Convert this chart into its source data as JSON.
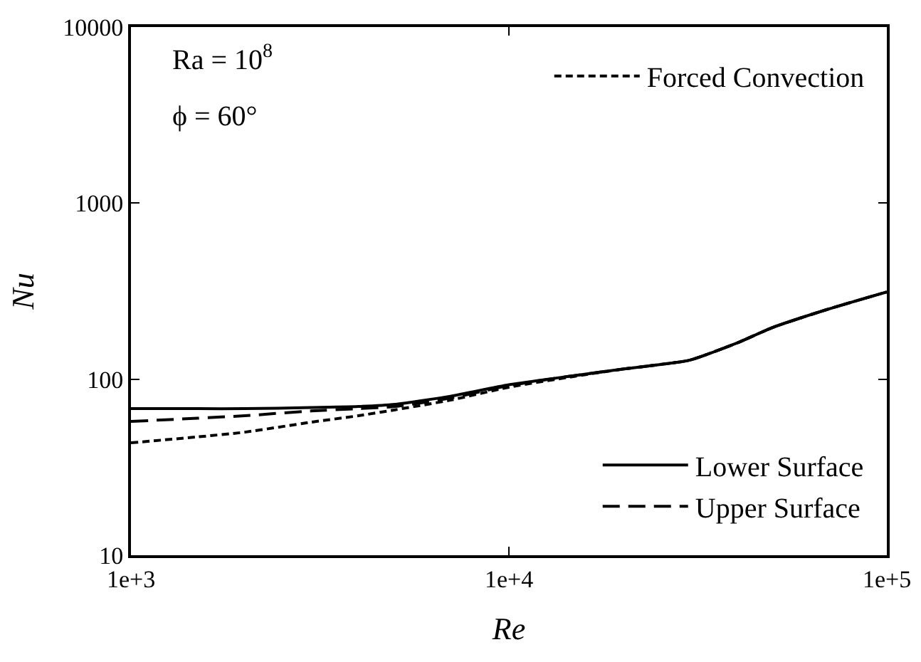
{
  "chart_data": {
    "type": "line",
    "xlabel": "Re",
    "ylabel": "Nu",
    "log": "xy",
    "grid": false,
    "legend": "bottom right",
    "xlim": [
      1000,
      100000
    ],
    "xticks": [
      {
        "value": 1000,
        "label": "1e+3"
      },
      {
        "value": 10000,
        "label": "1e+4"
      },
      {
        "value": 100000,
        "label": "1e+5"
      }
    ],
    "ylim": [
      10,
      10000
    ],
    "yticks": [
      10,
      100,
      1000,
      10000
    ],
    "annotations": [
      "Ra = 10$^{8}$",
      "ϕ = 60°"
    ],
    "series": [
      {
        "name": "Lower Surface",
        "color": "#000000",
        "line_style": "solid",
        "x": [
          1000,
          1500,
          2000,
          3000,
          4000,
          5000,
          7000,
          10000,
          15000,
          20000,
          25000,
          30000,
          40000,
          50000,
          70000,
          100000
        ],
        "values": [
          68,
          68,
          68,
          69,
          70,
          72,
          80,
          93,
          105,
          114,
          121,
          128,
          160,
          197,
          250,
          313
        ]
      },
      {
        "name": "Upper Surface",
        "color": "#000000",
        "line_style": "dashed",
        "x": [
          1000,
          1500,
          2000,
          3000,
          4000,
          5000,
          7000,
          10000,
          15000,
          20000,
          25000,
          30000,
          40000,
          50000,
          70000,
          100000
        ],
        "values": [
          57.5,
          60,
          62,
          66,
          68,
          70,
          78,
          92,
          105,
          114,
          121,
          128,
          160,
          197,
          250,
          313
        ]
      },
      {
        "name": "Forced Convection",
        "color": "#000000",
        "line_style": "dotted",
        "x": [
          1000,
          1500,
          2000,
          3000,
          4000,
          5000,
          7000,
          10000,
          15000,
          20000,
          25000,
          30000,
          40000,
          50000,
          70000,
          100000
        ],
        "values": [
          43.5,
          47,
          50,
          57,
          62,
          67,
          76,
          90,
          104,
          114,
          121,
          128,
          160,
          197,
          250,
          313
        ]
      }
    ]
  }
}
